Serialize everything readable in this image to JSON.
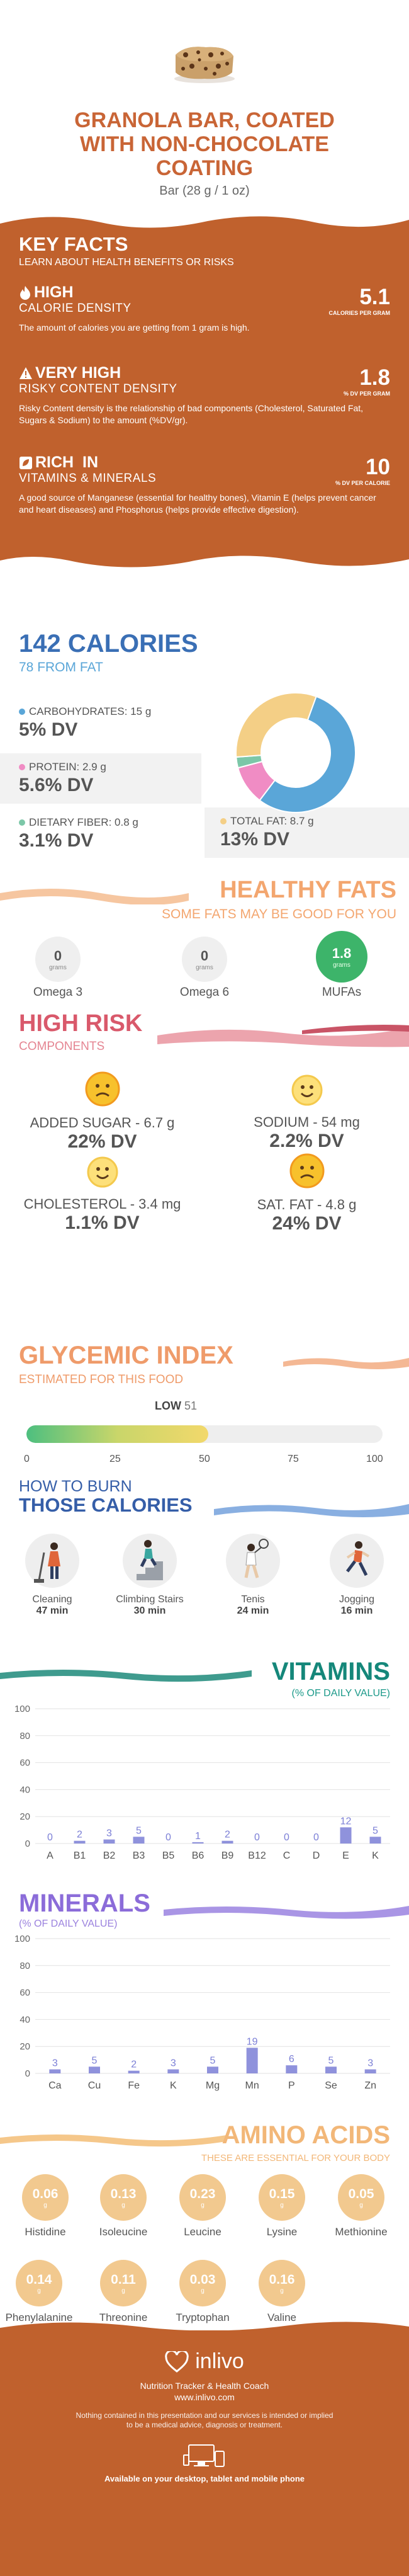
{
  "header": {
    "title_lines": [
      "GRANOLA BAR, COATED",
      "WITH NON-CHOCOLATE",
      "COATING"
    ],
    "serving": "Bar (28 g / 1 oz)"
  },
  "facts": {
    "title": "KEY FACTS",
    "subtitle": "LEARN ABOUT HEALTH BENEFITS OR RISKS",
    "items": [
      {
        "icon": "flame-icon",
        "level": "HIGH",
        "name": "CALORIE DENSITY",
        "value": "5.1",
        "unit": "CALORIES PER GRAM",
        "desc": "The amount of calories you are getting from 1 gram is high."
      },
      {
        "icon": "warning-icon",
        "level": "VERY HIGH",
        "name": "RISKY CONTENT DENSITY",
        "value": "1.8",
        "unit": "% DV PER GRAM",
        "desc": "Risky Content density is the relationship of bad components (Cholesterol, Saturated Fat, Sugars & Sodium) to the amount (%DV/gr)."
      },
      {
        "icon": "leaf-icon",
        "level": "RICH  IN",
        "name": "VITAMINS & MINERALS",
        "value": "10",
        "unit": "% DV PER CALORIE",
        "desc": "A good source of Manganese (essential for healthy bones), Vitamin E (helps prevent cancer and heart diseases) and Phosphorus (helps provide effective digestion)."
      }
    ]
  },
  "calories": {
    "title": "142 CALORIES",
    "subtitle": "78 FROM FAT",
    "rows": [
      {
        "label": "CARBOHYDRATES: 15 g",
        "dv": "5% DV",
        "color": "#5aa6d8"
      },
      {
        "label": "PROTEIN: 2.9 g",
        "dv": "5.6% DV",
        "color": "#f08cc4"
      },
      {
        "label": "DIETARY FIBER: 0.8 g",
        "dv": "3.1% DV",
        "color": "#7cc7a8"
      },
      {
        "label": "TOTAL FAT: 8.7 g",
        "dv": "13% DV",
        "color": "#f4cf86"
      }
    ],
    "pie": [
      {
        "name": "Carbohydrates",
        "value": 60,
        "color": "#5aa6d8"
      },
      {
        "name": "Protein",
        "value": 11.6,
        "color": "#f08cc4"
      },
      {
        "name": "Fiber",
        "value": 3.2,
        "color": "#7cc7a8"
      },
      {
        "name": "Fat",
        "value": 34.8,
        "color": "#f4cf86"
      }
    ]
  },
  "fats": {
    "title": "HEALTHY FATS",
    "subtitle": "SOME FATS MAY BE GOOD FOR YOU",
    "items": [
      {
        "value": "0",
        "unit": "grams",
        "name": "Omega 3",
        "color": "#eeeeee"
      },
      {
        "value": "0",
        "unit": "grams",
        "name": "Omega 6",
        "color": "#eeeeee"
      },
      {
        "value": "1.8",
        "unit": "grams",
        "name": "MUFAs",
        "color": "#3db46a"
      }
    ]
  },
  "risk": {
    "title": "HIGH RISK",
    "subtitle": "COMPONENTS",
    "items": [
      {
        "label": "ADDED SUGAR - 6.7 g",
        "dv": "22% DV",
        "face": "sad-face-icon"
      },
      {
        "label": "SODIUM - 54 mg",
        "dv": "2.2% DV",
        "face": "happy-face-icon"
      },
      {
        "label": "CHOLESTEROL - 3.4 mg",
        "dv": "1.1% DV",
        "face": "happy-face-icon"
      },
      {
        "label": "SAT. FAT - 4.8 g",
        "dv": "24% DV",
        "face": "sad-face-icon"
      }
    ]
  },
  "glycemic": {
    "title": "GLYCEMIC INDEX",
    "subtitle": "ESTIMATED FOR THIS FOOD",
    "level": "LOW",
    "value": 51,
    "ticks": [
      "0",
      "25",
      "50",
      "75",
      "100"
    ]
  },
  "burn": {
    "title_line1": "HOW TO BURN",
    "title_line2": "THOSE CALORIES",
    "items": [
      {
        "name": "Cleaning",
        "time": "47 min",
        "icon": "cleaning-person-icon"
      },
      {
        "name": "Climbing Stairs",
        "time": "30 min",
        "icon": "stairs-climber-icon"
      },
      {
        "name": "Tenis",
        "time": "24 min",
        "icon": "tennis-player-icon"
      },
      {
        "name": "Jogging",
        "time": "16 min",
        "icon": "jogger-icon"
      }
    ]
  },
  "vitamins": {
    "title": "VITAMINS",
    "subtitle": "(% OF DAILY VALUE)",
    "y_ticks": [
      "100",
      "80",
      "60",
      "40",
      "20",
      "0"
    ]
  },
  "minerals": {
    "title": "MINERALS",
    "subtitle": "(% OF DAILY VALUE)",
    "y_ticks": [
      "100",
      "80",
      "60",
      "40",
      "20",
      "0"
    ]
  },
  "amino": {
    "title": "AMINO ACIDS",
    "subtitle": "THESE ARE ESSENTIAL FOR YOUR BODY",
    "items": [
      {
        "value": "0.06",
        "unit": "g",
        "name": "Histidine"
      },
      {
        "value": "0.13",
        "unit": "g",
        "name": "Isoleucine"
      },
      {
        "value": "0.23",
        "unit": "g",
        "name": "Leucine"
      },
      {
        "value": "0.15",
        "unit": "g",
        "name": "Lysine"
      },
      {
        "value": "0.05",
        "unit": "g",
        "name": "Methionine"
      },
      {
        "value": "0.14",
        "unit": "g",
        "name": "Phenylalanine"
      },
      {
        "value": "0.11",
        "unit": "g",
        "name": "Threonine"
      },
      {
        "value": "0.03",
        "unit": "g",
        "name": "Tryptophan"
      },
      {
        "value": "0.16",
        "unit": "g",
        "name": "Valine"
      }
    ]
  },
  "footer": {
    "brand": "inlivo",
    "tagline": "Nutrition Tracker & Health Coach",
    "url": "www.inlivo.com",
    "disclaimer_1": "Nothing contained in this presentation and our services is intended or implied",
    "disclaimer_2": "to be a medical advice, diagnosis or treatment.",
    "available": "Available on your desktop, tablet and mobile phone"
  },
  "chart_data": [
    {
      "type": "bar",
      "title": "VITAMINS",
      "subtitle": "(% OF DAILY VALUE)",
      "categories": [
        "A",
        "B1",
        "B2",
        "B3",
        "B5",
        "B6",
        "B9",
        "B12",
        "C",
        "D",
        "E",
        "K"
      ],
      "values": [
        0,
        2,
        3,
        5,
        0,
        1,
        2,
        0,
        0,
        0,
        12,
        5
      ],
      "ylim": [
        0,
        100
      ],
      "color": "#7b7fd6"
    },
    {
      "type": "bar",
      "title": "MINERALS",
      "subtitle": "(% OF DAILY VALUE)",
      "categories": [
        "Ca",
        "Cu",
        "Fe",
        "K",
        "Mg",
        "Mn",
        "P",
        "Se",
        "Zn"
      ],
      "values": [
        3,
        5,
        2,
        3,
        5,
        19,
        6,
        5,
        3
      ],
      "ylim": [
        0,
        100
      ],
      "color": "#7b7fd6"
    }
  ]
}
